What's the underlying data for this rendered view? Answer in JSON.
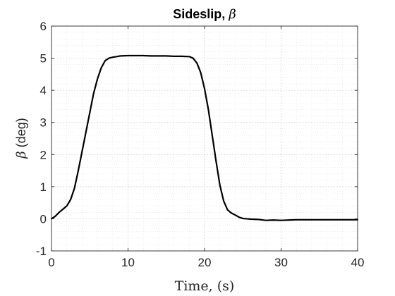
{
  "chart_data": {
    "type": "line",
    "title": "Sideslip, ",
    "title_symbol": "β",
    "xlabel": "Time, (s)",
    "ylabel_symbol": "β",
    "ylabel": " (deg)",
    "xlim": [
      0,
      40
    ],
    "ylim": [
      -1,
      6
    ],
    "xticks": [
      0,
      10,
      20,
      30,
      40
    ],
    "yticks": [
      -1,
      0,
      1,
      2,
      3,
      4,
      5,
      6
    ],
    "xtick_labels": [
      "0",
      "10",
      "20",
      "30",
      "40"
    ],
    "ytick_labels": [
      "-1",
      "0",
      "1",
      "2",
      "3",
      "4",
      "5",
      "6"
    ],
    "grid": true,
    "minor_grid": true,
    "line_color": "#000000",
    "series": [
      {
        "x": [
          0,
          0.5,
          1,
          1.5,
          2,
          2.5,
          3,
          3.5,
          4,
          4.5,
          5,
          5.5,
          6,
          6.5,
          7,
          7.5,
          8,
          8.5,
          9,
          10,
          11,
          12,
          13,
          14,
          15,
          16,
          17,
          18,
          18.5,
          19,
          19.5,
          20,
          20.5,
          21,
          21.5,
          22,
          22.5,
          23,
          23.5,
          24,
          24.5,
          25,
          25.5,
          26,
          27,
          28,
          29,
          30,
          31,
          32,
          34,
          36,
          38,
          40
        ],
        "y": [
          0.0,
          0.08,
          0.2,
          0.3,
          0.4,
          0.6,
          0.95,
          1.5,
          2.1,
          2.7,
          3.3,
          3.9,
          4.35,
          4.7,
          4.92,
          5.0,
          5.03,
          5.05,
          5.07,
          5.08,
          5.08,
          5.08,
          5.07,
          5.07,
          5.07,
          5.06,
          5.06,
          5.05,
          5.0,
          4.85,
          4.55,
          4.05,
          3.4,
          2.6,
          1.8,
          1.05,
          0.55,
          0.28,
          0.18,
          0.12,
          0.05,
          0.01,
          0.0,
          -0.01,
          -0.02,
          -0.05,
          -0.04,
          -0.05,
          -0.04,
          -0.03,
          -0.03,
          -0.03,
          -0.03,
          -0.03
        ]
      }
    ]
  }
}
